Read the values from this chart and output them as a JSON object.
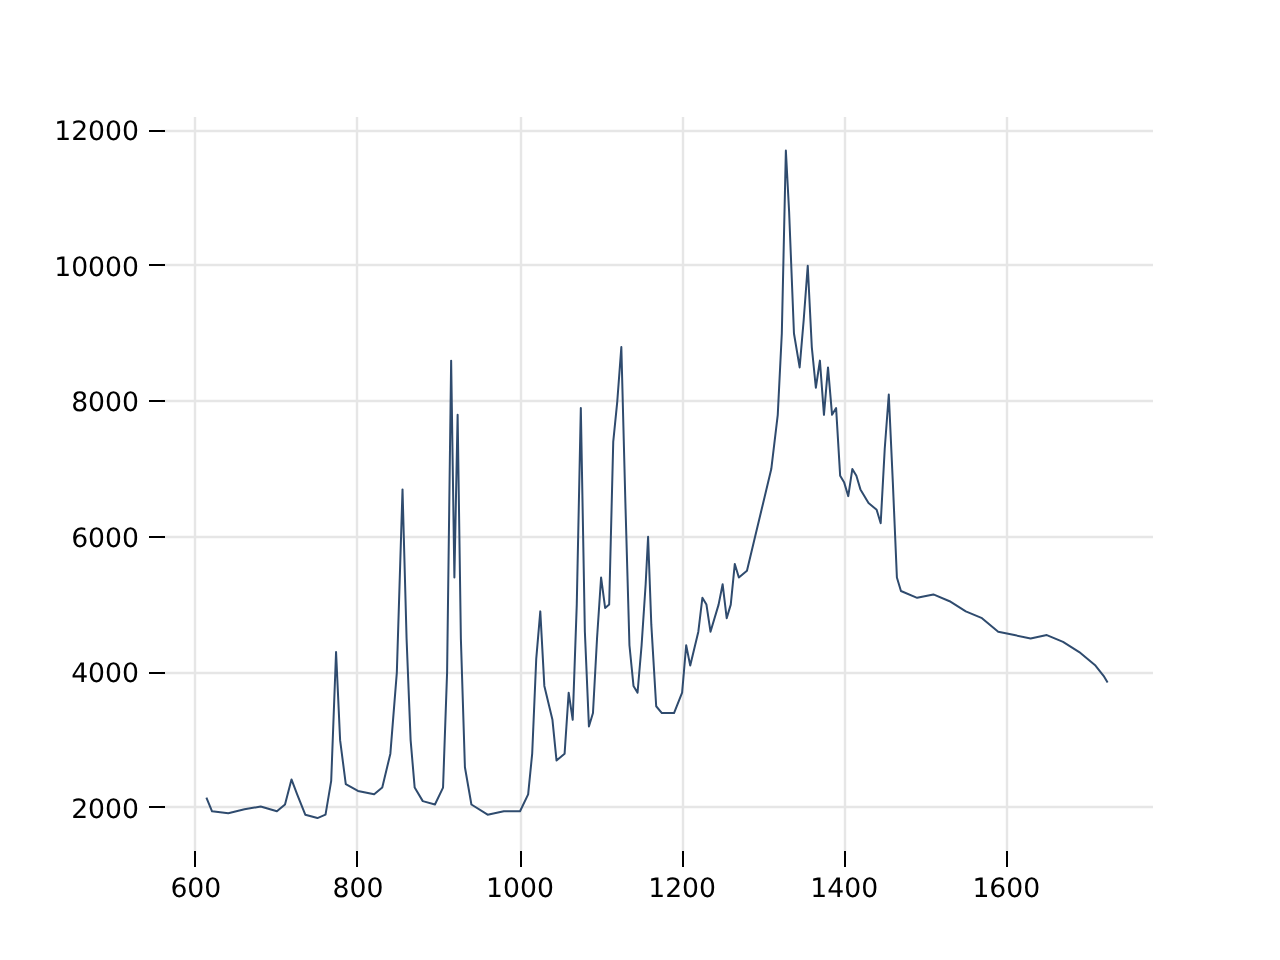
{
  "chart_data": {
    "type": "line",
    "xlim": [
      557,
      1781
    ],
    "ylim": [
      1305,
      12195
    ],
    "xticks": [
      600,
      800,
      1000,
      1200,
      1400,
      1600
    ],
    "yticks": [
      2000,
      4000,
      6000,
      8000,
      10000,
      12000
    ],
    "grid": true,
    "series": [
      {
        "color": "#2f4b6e",
        "x": [
          613,
          620,
          640,
          660,
          680,
          700,
          710,
          718,
          725,
          735,
          750,
          760,
          767,
          773,
          778,
          785,
          800,
          820,
          830,
          840,
          848,
          855,
          860,
          865,
          870,
          880,
          895,
          905,
          910,
          915,
          919,
          923,
          927,
          932,
          940,
          960,
          980,
          1000,
          1010,
          1015,
          1020,
          1025,
          1030,
          1040,
          1045,
          1055,
          1060,
          1065,
          1070,
          1075,
          1080,
          1085,
          1090,
          1095,
          1100,
          1105,
          1110,
          1115,
          1120,
          1125,
          1130,
          1135,
          1140,
          1145,
          1150,
          1155,
          1158,
          1162,
          1168,
          1175,
          1190,
          1200,
          1205,
          1210,
          1220,
          1225,
          1230,
          1235,
          1245,
          1250,
          1255,
          1260,
          1265,
          1270,
          1280,
          1290,
          1300,
          1310,
          1318,
          1323,
          1328,
          1332,
          1338,
          1345,
          1350,
          1355,
          1360,
          1365,
          1370,
          1375,
          1380,
          1385,
          1390,
          1395,
          1400,
          1405,
          1410,
          1415,
          1420,
          1430,
          1440,
          1445,
          1450,
          1455,
          1460,
          1465,
          1470,
          1490,
          1510,
          1530,
          1550,
          1570,
          1590,
          1610,
          1630,
          1650,
          1670,
          1690,
          1710,
          1720,
          1725
        ],
        "values": [
          2150,
          1950,
          1920,
          1980,
          2020,
          1950,
          2050,
          2420,
          2200,
          1900,
          1850,
          1900,
          2400,
          4300,
          3000,
          2350,
          2250,
          2200,
          2300,
          2800,
          4000,
          6700,
          4500,
          3000,
          2300,
          2100,
          2050,
          2300,
          4000,
          8600,
          5400,
          7800,
          4500,
          2600,
          2050,
          1900,
          1950,
          1950,
          2200,
          2800,
          4200,
          4900,
          3800,
          3300,
          2700,
          2800,
          3700,
          3300,
          5000,
          7900,
          4600,
          3200,
          3400,
          4500,
          5400,
          4950,
          5000,
          7400,
          8000,
          8800,
          6500,
          4400,
          3800,
          3700,
          4400,
          5300,
          6000,
          4700,
          3500,
          3400,
          3400,
          3700,
          4400,
          4100,
          4600,
          5100,
          5000,
          4600,
          5000,
          5300,
          4800,
          5000,
          5600,
          5400,
          5500,
          6000,
          6500,
          7000,
          7800,
          9000,
          11700,
          10800,
          9000,
          8500,
          9200,
          10000,
          8800,
          8200,
          8600,
          7800,
          8500,
          7800,
          7900,
          6900,
          6800,
          6600,
          7000,
          6900,
          6700,
          6500,
          6400,
          6200,
          7300,
          8100,
          6800,
          5400,
          5200,
          5100,
          5150,
          5050,
          4900,
          4800,
          4600,
          4550,
          4500,
          4550,
          4450,
          4300,
          4100,
          3950,
          3850
        ]
      }
    ]
  }
}
